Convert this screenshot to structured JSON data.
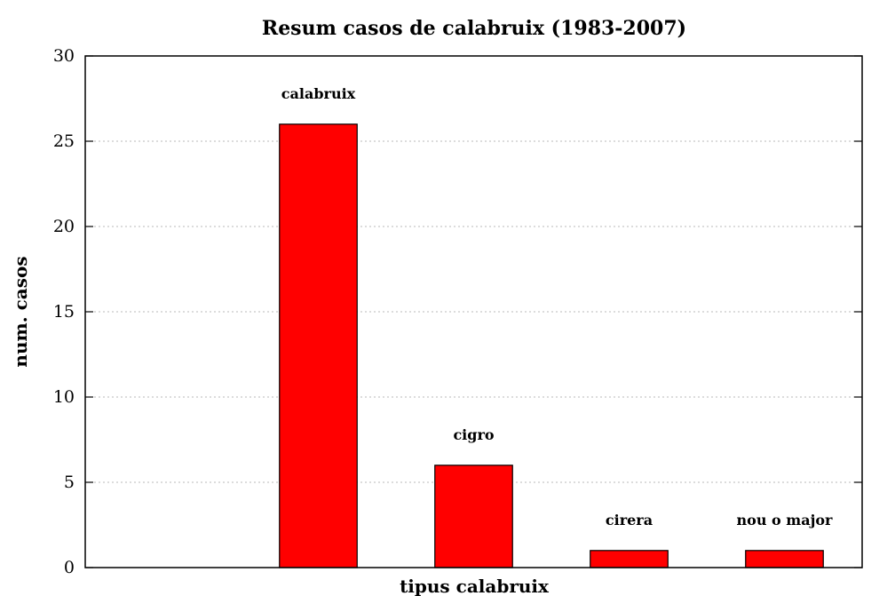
{
  "chart_data": {
    "type": "bar",
    "title": "Resum casos de calabruix (1983-2007)",
    "xlabel": "tipus calabruix",
    "ylabel": "num. casos",
    "categories": [
      "calabruix",
      "cigro",
      "cirera",
      "nou o major"
    ],
    "values": [
      26,
      6,
      1,
      1
    ],
    "ylim": [
      0,
      30
    ],
    "yticks": [
      0,
      5,
      10,
      15,
      20,
      25,
      30
    ],
    "grid": true,
    "bar_color": "#ff0000",
    "empty_slots": 1
  }
}
